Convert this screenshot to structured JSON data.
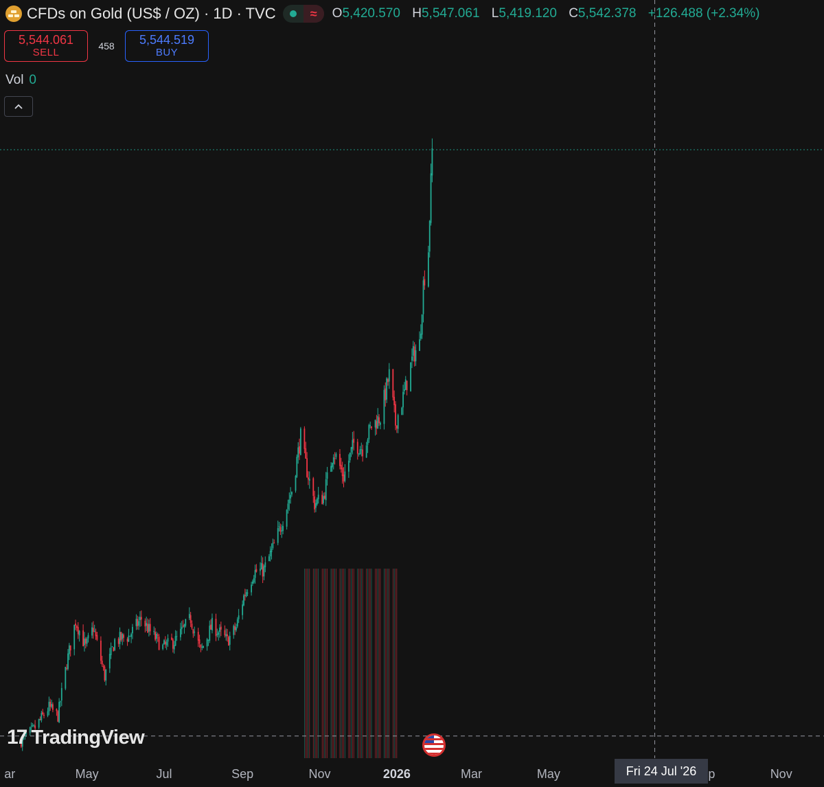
{
  "legend": {
    "title": "CFDs on Gold (US$ / OZ) · 1D · TVC",
    "status_icon": "market-open-dot-icon",
    "delay_icon": "delayed-data-icon",
    "delay_glyph": "≈",
    "o_key": "O",
    "open": "5,420.570",
    "h_key": "H",
    "high": "5,547.061",
    "l_key": "L",
    "low": "5,419.120",
    "c_key": "C",
    "close": "5,542.378",
    "change": "+126.488 (+2.34%)"
  },
  "trade": {
    "sell_price": "5,544.061",
    "sell_label": "SELL",
    "spread": "458",
    "buy_price": "5,544.519",
    "buy_label": "BUY"
  },
  "volume": {
    "label": "Vol",
    "value": "0"
  },
  "collapse_icon": "chevron-up-icon",
  "collapse_glyph": "︿",
  "watermark": {
    "mark": "17",
    "text": "TradingView"
  },
  "event_icon": "us-flag-icon",
  "crosshair": {
    "date_label": "Fri 24 Jul '26"
  },
  "colors": {
    "up": "#22ab94",
    "down": "#f23645",
    "background": "#131313",
    "axis_text": "#b2b5be"
  },
  "chart_data": {
    "type": "candlestick",
    "title": "",
    "xlabel": "",
    "ylabel": "",
    "x_range": [
      "2025-03-10",
      "2026-12-01"
    ],
    "y_range": [
      2800,
      5800
    ],
    "grid": false,
    "x_tick_labels": [
      {
        "label": "ar",
        "date": "2025-03-01",
        "bold": false
      },
      {
        "label": "May",
        "date": "2025-05-01",
        "bold": false
      },
      {
        "label": "Jul",
        "date": "2025-07-01",
        "bold": false
      },
      {
        "label": "Sep",
        "date": "2025-09-01",
        "bold": false
      },
      {
        "label": "Nov",
        "date": "2025-11-01",
        "bold": false
      },
      {
        "label": "2026",
        "date": "2026-01-01",
        "bold": true
      },
      {
        "label": "Mar",
        "date": "2026-03-01",
        "bold": false
      },
      {
        "label": "May",
        "date": "2026-05-01",
        "bold": false
      },
      {
        "label": "Sep",
        "date": "2026-09-01",
        "bold": false
      },
      {
        "label": "Nov",
        "date": "2026-11-01",
        "bold": false
      }
    ],
    "price_path": [
      [
        "2025-03-10",
        2880
      ],
      [
        "2025-03-20",
        2930
      ],
      [
        "2025-04-01",
        3030
      ],
      [
        "2025-04-08",
        2990
      ],
      [
        "2025-04-15",
        3230
      ],
      [
        "2025-04-22",
        3420
      ],
      [
        "2025-04-30",
        3300
      ],
      [
        "2025-05-06",
        3390
      ],
      [
        "2025-05-15",
        3170
      ],
      [
        "2025-05-23",
        3330
      ],
      [
        "2025-06-03",
        3350
      ],
      [
        "2025-06-13",
        3430
      ],
      [
        "2025-06-20",
        3370
      ],
      [
        "2025-06-30",
        3300
      ],
      [
        "2025-07-10",
        3330
      ],
      [
        "2025-07-22",
        3430
      ],
      [
        "2025-07-30",
        3280
      ],
      [
        "2025-08-08",
        3400
      ],
      [
        "2025-08-20",
        3330
      ],
      [
        "2025-08-27",
        3390
      ],
      [
        "2025-09-02",
        3530
      ],
      [
        "2025-09-10",
        3640
      ],
      [
        "2025-09-18",
        3650
      ],
      [
        "2025-09-26",
        3760
      ],
      [
        "2025-10-03",
        3880
      ],
      [
        "2025-10-10",
        4010
      ],
      [
        "2025-10-17",
        4250
      ],
      [
        "2025-10-21",
        4125
      ],
      [
        "2025-10-28",
        3950
      ],
      [
        "2025-11-04",
        3980
      ],
      [
        "2025-11-12",
        4190
      ],
      [
        "2025-11-20",
        4070
      ],
      [
        "2025-11-28",
        4220
      ],
      [
        "2025-12-05",
        4200
      ],
      [
        "2025-12-12",
        4300
      ],
      [
        "2025-12-19",
        4340
      ],
      [
        "2025-12-26",
        4530
      ],
      [
        "2025-12-31",
        4310
      ],
      [
        "2026-01-07",
        4450
      ],
      [
        "2026-01-14",
        4620
      ],
      [
        "2026-01-19",
        4670
      ],
      [
        "2026-01-22",
        4940
      ],
      [
        "2026-01-26",
        5100
      ],
      [
        "2026-01-29",
        5542
      ]
    ],
    "volume_band": {
      "start": "2025-10-20",
      "end": "2026-01-01",
      "values": 0
    },
    "last_price_level": 5547,
    "crosshair_date": "2026-07-24",
    "crosshair_price": 2900
  }
}
